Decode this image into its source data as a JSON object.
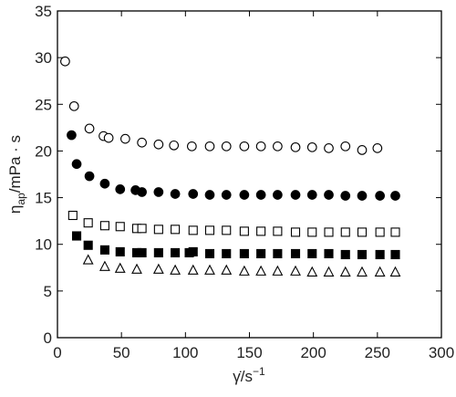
{
  "chart_data": {
    "type": "scatter",
    "x_label": {
      "main": "γ̇/s",
      "sup": "−1"
    },
    "y_label": {
      "main": "η",
      "sub": "ap",
      "rest": "/mPa · s"
    },
    "xlim": [
      0,
      300
    ],
    "xticks": [
      0,
      50,
      100,
      150,
      200,
      250,
      300
    ],
    "ylim": [
      0,
      35
    ],
    "yticks": [
      0,
      5,
      10,
      15,
      20,
      25,
      30,
      35
    ],
    "series": [
      {
        "marker": "circle",
        "filled": false,
        "color": "#000000",
        "x": [
          6,
          13,
          25,
          36,
          40,
          53,
          66,
          79,
          91,
          105,
          119,
          132,
          146,
          159,
          172,
          186,
          199,
          212,
          225,
          238,
          250
        ],
        "values": [
          29.6,
          24.8,
          22.4,
          21.6,
          21.4,
          21.3,
          20.9,
          20.7,
          20.6,
          20.5,
          20.5,
          20.5,
          20.5,
          20.5,
          20.5,
          20.4,
          20.4,
          20.3,
          20.5,
          20.1,
          20.3
        ]
      },
      {
        "marker": "circle",
        "filled": true,
        "color": "#000000",
        "x": [
          11,
          15,
          25,
          37,
          49,
          61,
          66,
          79,
          92,
          106,
          119,
          132,
          146,
          159,
          172,
          186,
          199,
          212,
          225,
          238,
          252,
          264
        ],
        "values": [
          21.7,
          18.6,
          17.3,
          16.5,
          15.9,
          15.8,
          15.6,
          15.6,
          15.4,
          15.4,
          15.3,
          15.3,
          15.3,
          15.3,
          15.3,
          15.3,
          15.3,
          15.3,
          15.2,
          15.2,
          15.2,
          15.2
        ]
      },
      {
        "marker": "square",
        "filled": false,
        "color": "#000000",
        "x": [
          12,
          24,
          37,
          49,
          62,
          66,
          79,
          92,
          106,
          119,
          132,
          146,
          159,
          172,
          186,
          199,
          212,
          225,
          238,
          252,
          264
        ],
        "values": [
          13.1,
          12.3,
          12.0,
          11.9,
          11.7,
          11.7,
          11.6,
          11.6,
          11.5,
          11.5,
          11.5,
          11.4,
          11.4,
          11.4,
          11.3,
          11.3,
          11.3,
          11.3,
          11.3,
          11.3,
          11.3
        ]
      },
      {
        "marker": "square",
        "filled": true,
        "color": "#000000",
        "x": [
          15,
          24,
          37,
          49,
          62,
          66,
          79,
          92,
          103,
          106,
          119,
          132,
          146,
          159,
          172,
          186,
          199,
          212,
          225,
          238,
          252,
          264
        ],
        "values": [
          10.9,
          9.9,
          9.4,
          9.2,
          9.1,
          9.1,
          9.1,
          9.1,
          9.1,
          9.2,
          9.0,
          9.0,
          9.0,
          9.0,
          9.0,
          9.0,
          9.0,
          9.0,
          8.9,
          8.9,
          8.9,
          8.9
        ]
      },
      {
        "marker": "triangle",
        "filled": false,
        "color": "#000000",
        "x": [
          24,
          37,
          49,
          62,
          79,
          92,
          106,
          119,
          132,
          146,
          159,
          172,
          186,
          199,
          212,
          225,
          238,
          252,
          264
        ],
        "values": [
          8.3,
          7.6,
          7.4,
          7.3,
          7.3,
          7.2,
          7.2,
          7.2,
          7.2,
          7.1,
          7.1,
          7.1,
          7.1,
          7.0,
          7.0,
          7.0,
          7.0,
          7.0,
          7.0
        ]
      }
    ]
  }
}
